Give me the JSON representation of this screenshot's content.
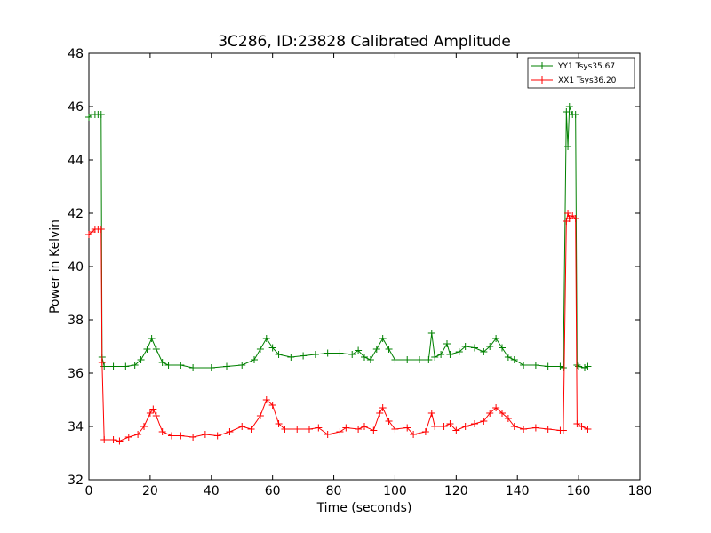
{
  "chart_data": {
    "type": "line",
    "title": "3C286, ID:23828 Calibrated Amplitude",
    "xlabel": "Time (seconds)",
    "ylabel": "Power in Kelvin",
    "xlim": [
      0,
      180
    ],
    "ylim": [
      32,
      48
    ],
    "xticks": [
      "0",
      "20",
      "40",
      "60",
      "80",
      "100",
      "120",
      "140",
      "160",
      "180"
    ],
    "yticks": [
      "32",
      "34",
      "36",
      "38",
      "40",
      "42",
      "44",
      "46",
      "48"
    ],
    "grid": false,
    "legend_position": "top-right",
    "marker": "+",
    "series": [
      {
        "name": "YY1 Tsys35.67",
        "color": "#008000",
        "points": [
          [
            0,
            45.6
          ],
          [
            1,
            45.7
          ],
          [
            2,
            45.7
          ],
          [
            3,
            45.7
          ],
          [
            4,
            45.7
          ],
          [
            4.3,
            36.6
          ],
          [
            5,
            36.25
          ],
          [
            8,
            36.25
          ],
          [
            12,
            36.25
          ],
          [
            15,
            36.3
          ],
          [
            17,
            36.5
          ],
          [
            19,
            36.9
          ],
          [
            20.5,
            37.3
          ],
          [
            22,
            36.9
          ],
          [
            24,
            36.4
          ],
          [
            26,
            36.3
          ],
          [
            30,
            36.3
          ],
          [
            34,
            36.2
          ],
          [
            40,
            36.2
          ],
          [
            45,
            36.25
          ],
          [
            50,
            36.3
          ],
          [
            54,
            36.5
          ],
          [
            56,
            36.9
          ],
          [
            58,
            37.3
          ],
          [
            60,
            36.95
          ],
          [
            62,
            36.7
          ],
          [
            66,
            36.6
          ],
          [
            70,
            36.65
          ],
          [
            74,
            36.7
          ],
          [
            78,
            36.75
          ],
          [
            82,
            36.75
          ],
          [
            86,
            36.7
          ],
          [
            88,
            36.85
          ],
          [
            90,
            36.6
          ],
          [
            92,
            36.5
          ],
          [
            94,
            36.9
          ],
          [
            96,
            37.3
          ],
          [
            98,
            36.9
          ],
          [
            100,
            36.5
          ],
          [
            104,
            36.5
          ],
          [
            108,
            36.5
          ],
          [
            111,
            36.5
          ],
          [
            112,
            37.5
          ],
          [
            113,
            36.6
          ],
          [
            115,
            36.7
          ],
          [
            117,
            37.1
          ],
          [
            118,
            36.7
          ],
          [
            121,
            36.8
          ],
          [
            123,
            37.0
          ],
          [
            126,
            36.95
          ],
          [
            129,
            36.8
          ],
          [
            131,
            37.0
          ],
          [
            133,
            37.3
          ],
          [
            135,
            36.95
          ],
          [
            137,
            36.6
          ],
          [
            139,
            36.5
          ],
          [
            142,
            36.3
          ],
          [
            146,
            36.3
          ],
          [
            150,
            36.25
          ],
          [
            154,
            36.25
          ],
          [
            155,
            36.2
          ],
          [
            156,
            45.8
          ],
          [
            156.5,
            44.5
          ],
          [
            157,
            46.0
          ],
          [
            158,
            45.7
          ],
          [
            159,
            45.7
          ],
          [
            159.5,
            36.3
          ],
          [
            160,
            36.25
          ],
          [
            162,
            36.2
          ],
          [
            163,
            36.25
          ]
        ]
      },
      {
        "name": "XX1 Tsys36.20",
        "color": "#ff0000",
        "points": [
          [
            0,
            41.2
          ],
          [
            1,
            41.3
          ],
          [
            2,
            41.4
          ],
          [
            3,
            41.4
          ],
          [
            4,
            41.4
          ],
          [
            4.3,
            36.4
          ],
          [
            5,
            33.5
          ],
          [
            8,
            33.5
          ],
          [
            10,
            33.45
          ],
          [
            13,
            33.6
          ],
          [
            16,
            33.7
          ],
          [
            18,
            34.0
          ],
          [
            20,
            34.5
          ],
          [
            21,
            34.65
          ],
          [
            22,
            34.4
          ],
          [
            24,
            33.8
          ],
          [
            27,
            33.65
          ],
          [
            30,
            33.65
          ],
          [
            34,
            33.6
          ],
          [
            38,
            33.7
          ],
          [
            42,
            33.65
          ],
          [
            46,
            33.8
          ],
          [
            50,
            34.0
          ],
          [
            53,
            33.9
          ],
          [
            56,
            34.4
          ],
          [
            58,
            35.0
          ],
          [
            60,
            34.8
          ],
          [
            62,
            34.1
          ],
          [
            64,
            33.9
          ],
          [
            68,
            33.9
          ],
          [
            72,
            33.9
          ],
          [
            75,
            33.95
          ],
          [
            78,
            33.7
          ],
          [
            82,
            33.8
          ],
          [
            84,
            33.95
          ],
          [
            88,
            33.9
          ],
          [
            90,
            34.0
          ],
          [
            93,
            33.85
          ],
          [
            95,
            34.5
          ],
          [
            96,
            34.7
          ],
          [
            98,
            34.2
          ],
          [
            100,
            33.9
          ],
          [
            104,
            33.95
          ],
          [
            106,
            33.7
          ],
          [
            110,
            33.8
          ],
          [
            112,
            34.5
          ],
          [
            113,
            34.0
          ],
          [
            116,
            34.0
          ],
          [
            118,
            34.1
          ],
          [
            120,
            33.85
          ],
          [
            123,
            34.0
          ],
          [
            126,
            34.1
          ],
          [
            129,
            34.2
          ],
          [
            131,
            34.5
          ],
          [
            133,
            34.7
          ],
          [
            135,
            34.5
          ],
          [
            137,
            34.3
          ],
          [
            139,
            34.0
          ],
          [
            142,
            33.9
          ],
          [
            146,
            33.95
          ],
          [
            150,
            33.9
          ],
          [
            154,
            33.85
          ],
          [
            155,
            33.85
          ],
          [
            156,
            41.7
          ],
          [
            156.5,
            42.0
          ],
          [
            157,
            41.8
          ],
          [
            158,
            41.9
          ],
          [
            159,
            41.8
          ],
          [
            159.5,
            34.1
          ],
          [
            161,
            34.0
          ],
          [
            163,
            33.9
          ]
        ]
      }
    ]
  }
}
